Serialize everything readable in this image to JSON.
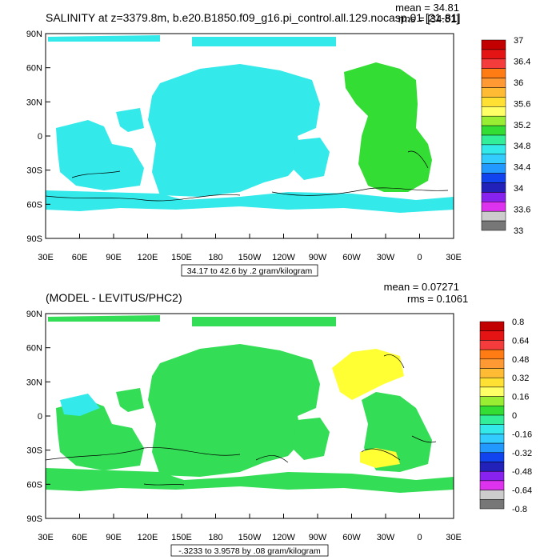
{
  "axes": {
    "lat_labels": [
      "90N",
      "60N",
      "30N",
      "0",
      "30S",
      "60S",
      "90S"
    ],
    "lon_labels": [
      "30E",
      "60E",
      "90E",
      "120E",
      "150E",
      "180",
      "150W",
      "120W",
      "90W",
      "60W",
      "30W",
      "0",
      "30E"
    ]
  },
  "colors": {
    "land": "#ffffff",
    "frame": "#000000"
  },
  "panels": [
    {
      "title": "SALINITY at z=3379.8m, b.e20.B1850.f09_g16.pi_control.all.129.nocasp.01 [21-81]",
      "mean": "mean = 34.81",
      "rms": "rms = [34.81]",
      "range_label": "34.17 to 42.6 by .2 gram/kilogram",
      "ocean_color": "#33e9ea",
      "atlantic_color": "#33dd33",
      "colorbar": {
        "colors": [
          "#c30000",
          "#e41414",
          "#f53c3c",
          "#ff7c14",
          "#ff9933",
          "#ffbb33",
          "#ffe033",
          "#ffff66",
          "#99ee33",
          "#33dd33",
          "#33ee99",
          "#33e9ea",
          "#33ccff",
          "#2299ff",
          "#1144ee",
          "#2222bb",
          "#8822ee",
          "#dd33ee",
          "#cccccc",
          "#777777"
        ],
        "labels": [
          "37",
          "36.4",
          "36",
          "35.6",
          "35.2",
          "34.8",
          "34.4",
          "34",
          "33.6",
          "33"
        ]
      }
    },
    {
      "title": "(MODEL - LEVITUS/PHC2)",
      "mean": "mean = 0.07271",
      "rms": "rms = 0.1061",
      "range_label": "-.3233 to 3.9578 by .08 gram/kilogram",
      "ocean_color": "#33dd55",
      "atlantic_color": "#ffff33",
      "colorbar": {
        "colors": [
          "#c30000",
          "#e41414",
          "#f53c3c",
          "#ff7c14",
          "#ff9933",
          "#ffbb33",
          "#ffe033",
          "#ffff66",
          "#99ee33",
          "#33dd33",
          "#33ee99",
          "#33e9ea",
          "#33ccff",
          "#2299ff",
          "#1144ee",
          "#2222bb",
          "#8822ee",
          "#dd33ee",
          "#cccccc",
          "#777777"
        ],
        "labels": [
          "0.8",
          "0.64",
          "0.48",
          "0.32",
          "0.16",
          "0",
          "-0.16",
          "-0.32",
          "-0.48",
          "-0.64",
          "-0.8"
        ]
      }
    }
  ]
}
